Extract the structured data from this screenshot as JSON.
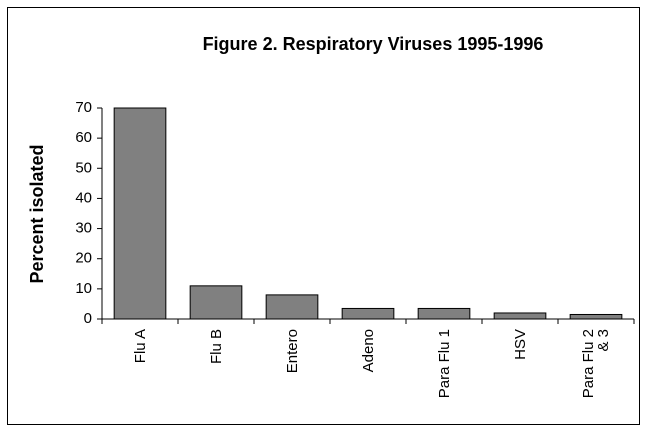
{
  "chart_data": {
    "type": "bar",
    "title": "Figure 2.  Respiratory Viruses 1995-1996",
    "y_label": "Percent isolated",
    "categories": [
      "Flu A",
      "Flu B",
      "Entero",
      "Adeno",
      "Para Flu 1",
      "HSV",
      "Para Flu 2 & 3"
    ],
    "values": [
      70,
      11,
      8,
      3.5,
      3.5,
      2,
      1.5
    ],
    "color": "#808080",
    "ylim": [
      0,
      70
    ],
    "yticks": [
      0,
      10,
      20,
      30,
      40,
      50,
      60,
      70
    ],
    "grid": false
  }
}
